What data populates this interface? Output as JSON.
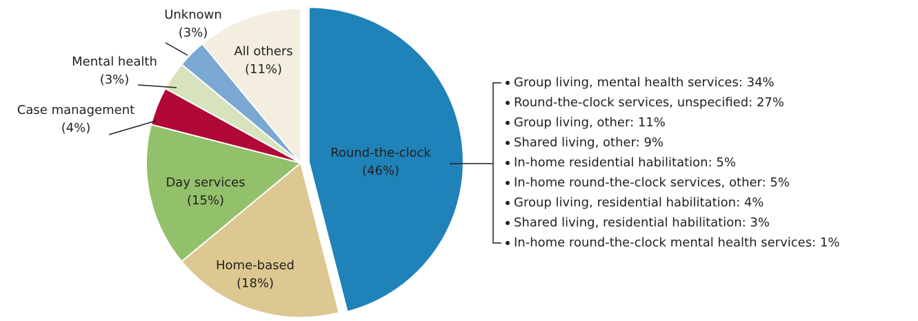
{
  "chart_data": {
    "type": "pie",
    "categories": [
      "Round-the-clock",
      "Home-based",
      "Day services",
      "Case management",
      "Mental health",
      "Unknown",
      "All others"
    ],
    "values": [
      46,
      18,
      15,
      4,
      3,
      3,
      11
    ],
    "value_labels": [
      "(46%)",
      "(18%)",
      "(15%)",
      "(4%)",
      "(3%)",
      "(3%)",
      "(11%)"
    ],
    "colors": [
      "#1f82b8",
      "#dcc890",
      "#93c06a",
      "#b00838",
      "#d6e3bc",
      "#7aa8d2",
      "#f3eedf"
    ],
    "breakdown": [
      "Group living, mental health services: 34%",
      "Round-the-clock services, unspecified: 27%",
      "Group living, other: 11%",
      "Shared living, other: 9%",
      "In-home residential habilitation: 5%",
      "In-home round-the-clock services, other: 5%",
      "Group living, residential habilitation: 4%",
      "Shared living, residential habilitation: 3%",
      "In-home round-the-clock mental health services: 1%"
    ]
  }
}
